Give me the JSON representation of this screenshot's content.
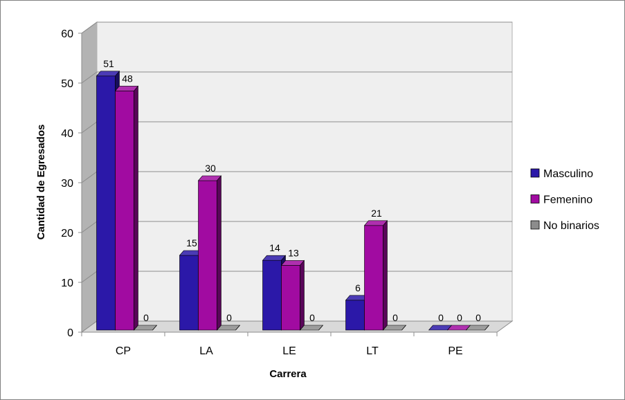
{
  "chart_data": {
    "type": "bar",
    "title": "",
    "xlabel": "Carrera",
    "ylabel": "Cantidad de Egresados",
    "categories": [
      "CP",
      "LA",
      "LE",
      "LT",
      "PE"
    ],
    "series": [
      {
        "name": "Masculino",
        "values": [
          51,
          15,
          14,
          6,
          0
        ],
        "color": "#2b18a8"
      },
      {
        "name": "Femenino",
        "values": [
          48,
          30,
          13,
          21,
          0
        ],
        "color": "#a10ba1"
      },
      {
        "name": "No binarios",
        "values": [
          0,
          0,
          0,
          0,
          0
        ],
        "color": "#8c8c8c"
      }
    ],
    "ylim": [
      0,
      60
    ],
    "yticks": [
      0,
      10,
      20,
      30,
      40,
      50,
      60
    ],
    "grid": true,
    "legend_position": "right",
    "style": "3d-clustered-column"
  }
}
